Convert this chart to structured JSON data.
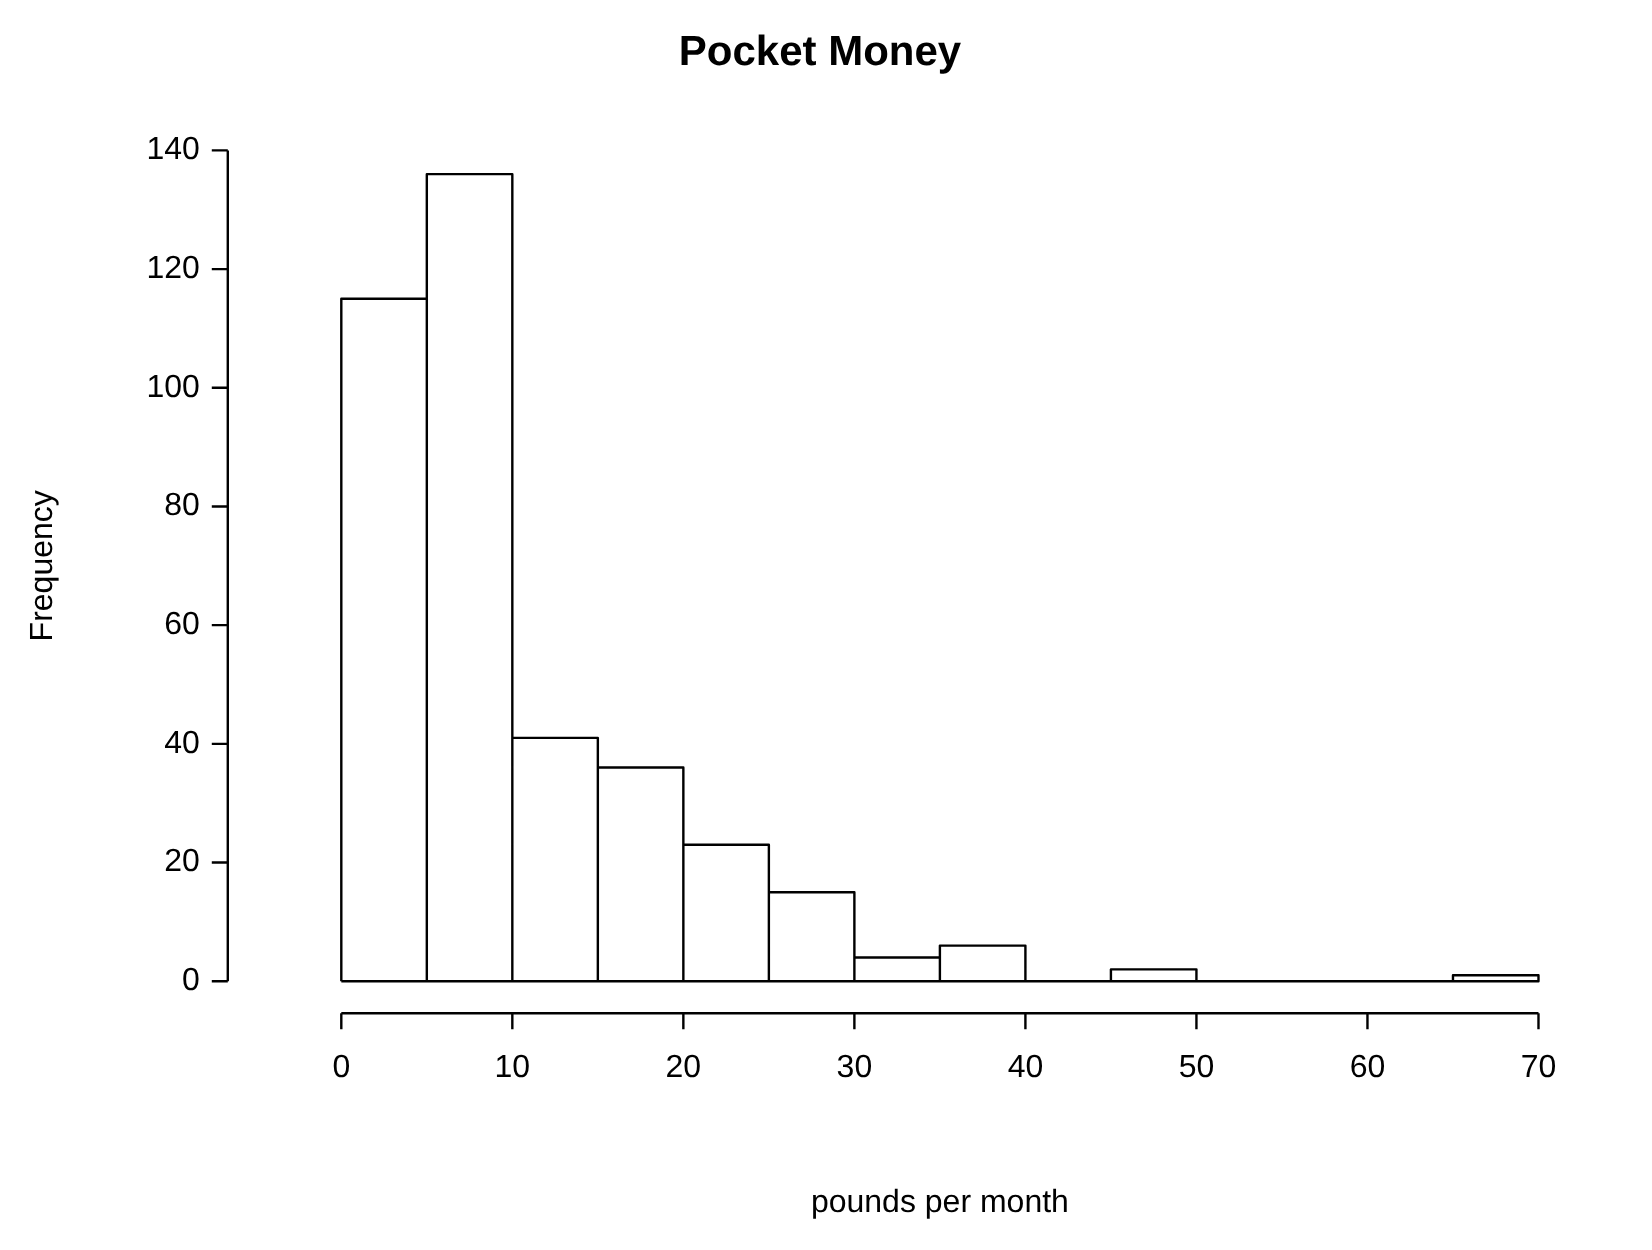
{
  "chart_data": {
    "type": "histogram",
    "title": "Pocket Money",
    "xlabel": "pounds per month",
    "ylabel": "Frequency",
    "bins": [
      0,
      5,
      10,
      15,
      20,
      25,
      30,
      35,
      40,
      45,
      50,
      55,
      60,
      65,
      70
    ],
    "values": [
      115,
      136,
      41,
      36,
      23,
      15,
      4,
      6,
      0,
      2,
      0,
      0,
      0,
      1
    ],
    "color": "#ffffff",
    "xlim": [
      0,
      70
    ],
    "xticks": [
      0,
      10,
      20,
      30,
      40,
      50,
      60,
      70
    ],
    "ylim": [
      0,
      140
    ],
    "yticks": [
      0,
      20,
      40,
      60,
      80,
      100,
      120,
      140
    ],
    "grid": false,
    "legend": false
  }
}
